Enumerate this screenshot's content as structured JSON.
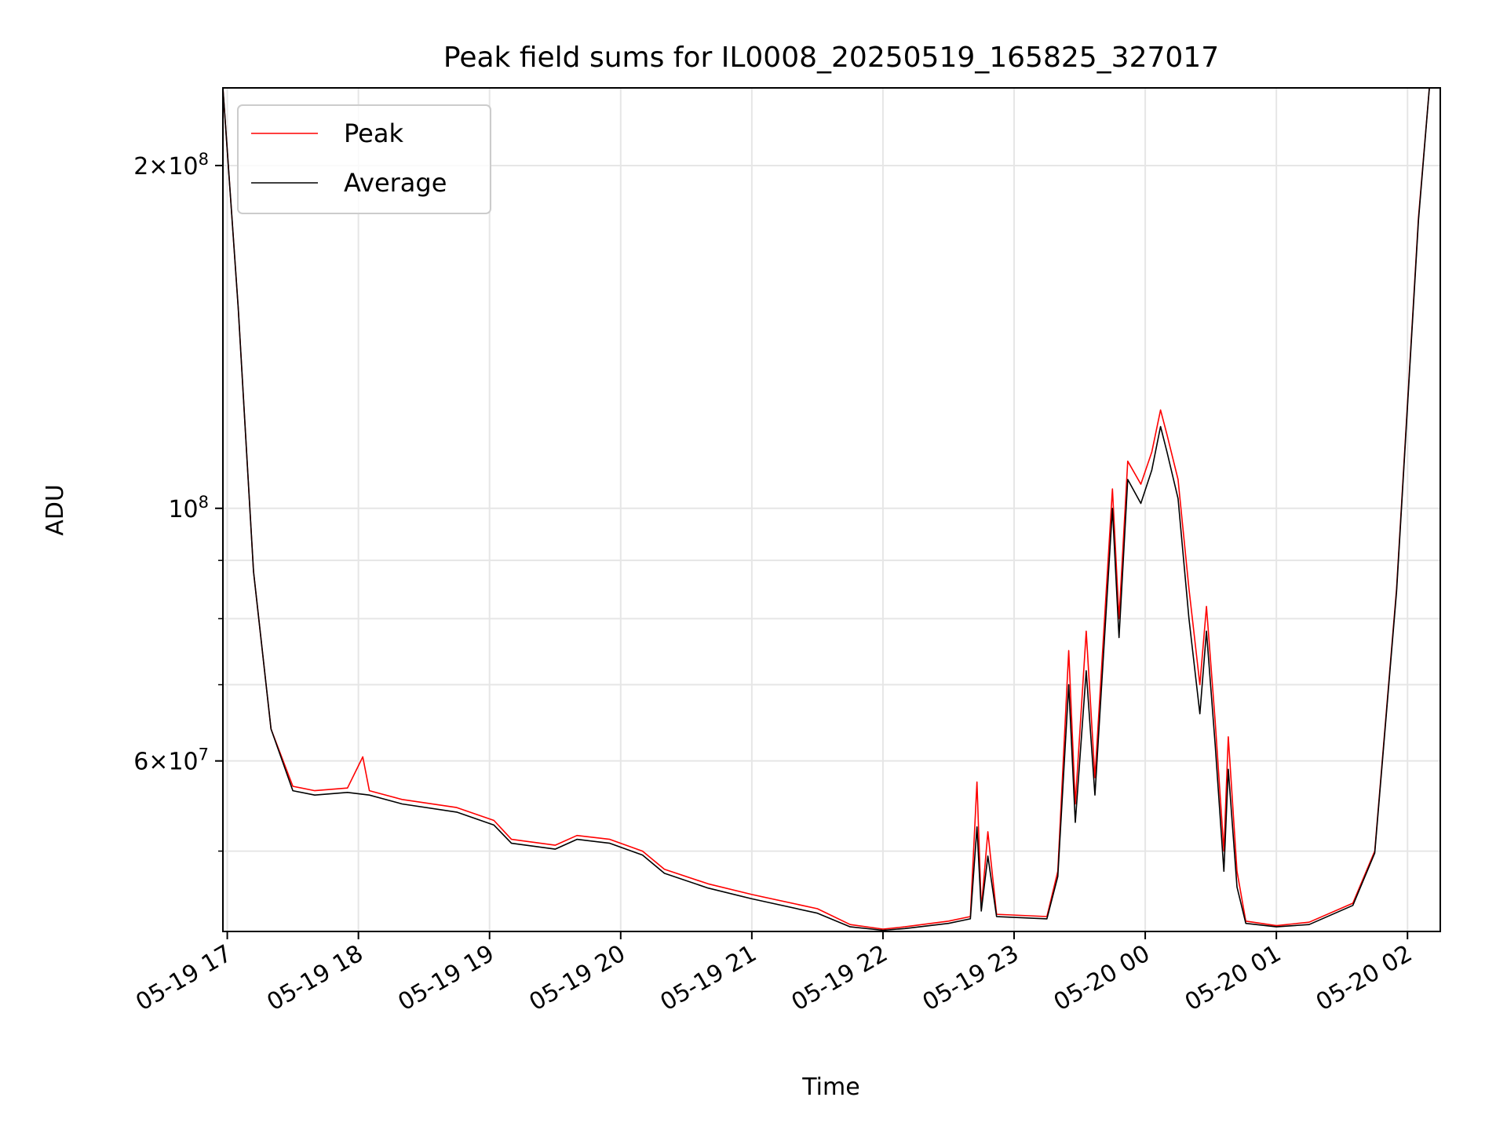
{
  "chart_data": {
    "type": "line",
    "title": "Peak field sums for IL0008_20250519_165825_327017",
    "xlabel": "Time",
    "ylabel": "ADU",
    "x_axis": {
      "type": "time",
      "range": [
        "2025-05-19 16:58",
        "2025-05-20 02:15"
      ],
      "ticks": [
        {
          "t": "2025-05-19 17:00",
          "label": "05-19 17"
        },
        {
          "t": "2025-05-19 18:00",
          "label": "05-19 18"
        },
        {
          "t": "2025-05-19 19:00",
          "label": "05-19 19"
        },
        {
          "t": "2025-05-19 20:00",
          "label": "05-19 20"
        },
        {
          "t": "2025-05-19 21:00",
          "label": "05-19 21"
        },
        {
          "t": "2025-05-19 22:00",
          "label": "05-19 22"
        },
        {
          "t": "2025-05-19 23:00",
          "label": "05-19 23"
        },
        {
          "t": "2025-05-20 00:00",
          "label": "05-20 00"
        },
        {
          "t": "2025-05-20 01:00",
          "label": "05-20 01"
        },
        {
          "t": "2025-05-20 02:00",
          "label": "05-20 02"
        }
      ]
    },
    "y_axis": {
      "scale": "log",
      "range": [
        42500000,
        234000000
      ],
      "major_ticks": [
        {
          "value": 200000000,
          "mantissa": "2",
          "exp": "8"
        },
        {
          "value": 100000000,
          "mantissa": "",
          "exp": "8"
        },
        {
          "value": 60000000,
          "mantissa": "6",
          "exp": "7"
        }
      ],
      "minor_ticks": [
        50000000,
        70000000,
        80000000,
        90000000
      ]
    },
    "grid": true,
    "legend": {
      "placement": "top-left",
      "entries": [
        "Peak",
        "Average"
      ]
    },
    "series": [
      {
        "name": "Peak",
        "color": "#ff0000",
        "points": [
          [
            "2025-05-19 16:58",
            234000000
          ],
          [
            "2025-05-19 17:05",
            150000000
          ],
          [
            "2025-05-19 17:12",
            88000000
          ],
          [
            "2025-05-19 17:20",
            64000000
          ],
          [
            "2025-05-19 17:30",
            57000000
          ],
          [
            "2025-05-19 17:40",
            56500000
          ],
          [
            "2025-05-19 17:55",
            56800000
          ],
          [
            "2025-05-19 18:02",
            60500000
          ],
          [
            "2025-05-19 18:05",
            56500000
          ],
          [
            "2025-05-19 18:20",
            55500000
          ],
          [
            "2025-05-19 18:45",
            54600000
          ],
          [
            "2025-05-19 19:02",
            53200000
          ],
          [
            "2025-05-19 19:10",
            51200000
          ],
          [
            "2025-05-19 19:30",
            50600000
          ],
          [
            "2025-05-19 19:40",
            51600000
          ],
          [
            "2025-05-19 19:55",
            51200000
          ],
          [
            "2025-05-19 20:10",
            50000000
          ],
          [
            "2025-05-19 20:20",
            48200000
          ],
          [
            "2025-05-19 20:40",
            46800000
          ],
          [
            "2025-05-19 21:00",
            45800000
          ],
          [
            "2025-05-19 21:30",
            44500000
          ],
          [
            "2025-05-19 21:45",
            43100000
          ],
          [
            "2025-05-19 22:00",
            42700000
          ],
          [
            "2025-05-19 22:10",
            42900000
          ],
          [
            "2025-05-19 22:30",
            43400000
          ],
          [
            "2025-05-19 22:40",
            43800000
          ],
          [
            "2025-05-19 22:43",
            57500000
          ],
          [
            "2025-05-19 22:45",
            44500000
          ],
          [
            "2025-05-19 22:48",
            52000000
          ],
          [
            "2025-05-19 22:52",
            44000000
          ],
          [
            "2025-05-19 23:15",
            43800000
          ],
          [
            "2025-05-19 23:20",
            48000000
          ],
          [
            "2025-05-19 23:25",
            75000000
          ],
          [
            "2025-05-19 23:28",
            55000000
          ],
          [
            "2025-05-19 23:33",
            78000000
          ],
          [
            "2025-05-19 23:37",
            58000000
          ],
          [
            "2025-05-19 23:45",
            104000000
          ],
          [
            "2025-05-19 23:48",
            80000000
          ],
          [
            "2025-05-19 23:52",
            110000000
          ],
          [
            "2025-05-19 23:58",
            105000000
          ],
          [
            "2025-05-20 00:03",
            112000000
          ],
          [
            "2025-05-20 00:07",
            122000000
          ],
          [
            "2025-05-20 00:10",
            116000000
          ],
          [
            "2025-05-20 00:15",
            106000000
          ],
          [
            "2025-05-20 00:20",
            85000000
          ],
          [
            "2025-05-20 00:25",
            70000000
          ],
          [
            "2025-05-20 00:28",
            82000000
          ],
          [
            "2025-05-20 00:32",
            65000000
          ],
          [
            "2025-05-20 00:36",
            50000000
          ],
          [
            "2025-05-20 00:38",
            63000000
          ],
          [
            "2025-05-20 00:42",
            48000000
          ],
          [
            "2025-05-20 00:46",
            43400000
          ],
          [
            "2025-05-20 01:00",
            43000000
          ],
          [
            "2025-05-20 01:15",
            43300000
          ],
          [
            "2025-05-20 01:35",
            45000000
          ],
          [
            "2025-05-20 01:45",
            50000000
          ],
          [
            "2025-05-20 01:55",
            85000000
          ],
          [
            "2025-05-20 02:05",
            180000000
          ],
          [
            "2025-05-20 02:10",
            234000000
          ]
        ]
      },
      {
        "name": "Average",
        "color": "#000000",
        "points": [
          [
            "2025-05-19 16:58",
            234000000
          ],
          [
            "2025-05-19 17:05",
            150000000
          ],
          [
            "2025-05-19 17:12",
            88000000
          ],
          [
            "2025-05-19 17:20",
            64000000
          ],
          [
            "2025-05-19 17:30",
            56500000
          ],
          [
            "2025-05-19 17:40",
            56000000
          ],
          [
            "2025-05-19 17:55",
            56300000
          ],
          [
            "2025-05-19 18:05",
            56000000
          ],
          [
            "2025-05-19 18:20",
            55000000
          ],
          [
            "2025-05-19 18:45",
            54100000
          ],
          [
            "2025-05-19 19:02",
            52700000
          ],
          [
            "2025-05-19 19:10",
            50800000
          ],
          [
            "2025-05-19 19:30",
            50200000
          ],
          [
            "2025-05-19 19:40",
            51200000
          ],
          [
            "2025-05-19 19:55",
            50800000
          ],
          [
            "2025-05-19 20:10",
            49600000
          ],
          [
            "2025-05-19 20:20",
            47800000
          ],
          [
            "2025-05-19 20:40",
            46400000
          ],
          [
            "2025-05-19 21:00",
            45400000
          ],
          [
            "2025-05-19 21:30",
            44100000
          ],
          [
            "2025-05-19 21:45",
            42900000
          ],
          [
            "2025-05-19 22:00",
            42600000
          ],
          [
            "2025-05-19 22:10",
            42750000
          ],
          [
            "2025-05-19 22:30",
            43200000
          ],
          [
            "2025-05-19 22:40",
            43600000
          ],
          [
            "2025-05-19 22:43",
            52500000
          ],
          [
            "2025-05-19 22:45",
            44300000
          ],
          [
            "2025-05-19 22:48",
            49500000
          ],
          [
            "2025-05-19 22:52",
            43800000
          ],
          [
            "2025-05-19 23:15",
            43600000
          ],
          [
            "2025-05-19 23:20",
            47500000
          ],
          [
            "2025-05-19 23:25",
            70000000
          ],
          [
            "2025-05-19 23:28",
            53000000
          ],
          [
            "2025-05-19 23:33",
            72000000
          ],
          [
            "2025-05-19 23:37",
            56000000
          ],
          [
            "2025-05-19 23:45",
            100000000
          ],
          [
            "2025-05-19 23:48",
            77000000
          ],
          [
            "2025-05-19 23:52",
            106000000
          ],
          [
            "2025-05-19 23:58",
            101000000
          ],
          [
            "2025-05-20 00:03",
            108000000
          ],
          [
            "2025-05-20 00:07",
            118000000
          ],
          [
            "2025-05-20 00:10",
            112000000
          ],
          [
            "2025-05-20 00:15",
            102000000
          ],
          [
            "2025-05-20 00:20",
            80000000
          ],
          [
            "2025-05-20 00:25",
            66000000
          ],
          [
            "2025-05-20 00:28",
            78000000
          ],
          [
            "2025-05-20 00:32",
            62000000
          ],
          [
            "2025-05-20 00:36",
            48000000
          ],
          [
            "2025-05-20 00:38",
            59000000
          ],
          [
            "2025-05-20 00:42",
            46500000
          ],
          [
            "2025-05-20 00:46",
            43200000
          ],
          [
            "2025-05-20 01:00",
            42900000
          ],
          [
            "2025-05-20 01:15",
            43100000
          ],
          [
            "2025-05-20 01:35",
            44800000
          ],
          [
            "2025-05-20 01:45",
            49800000
          ],
          [
            "2025-05-20 01:55",
            84500000
          ],
          [
            "2025-05-20 02:05",
            179000000
          ],
          [
            "2025-05-20 02:10",
            234000000
          ]
        ]
      }
    ]
  }
}
